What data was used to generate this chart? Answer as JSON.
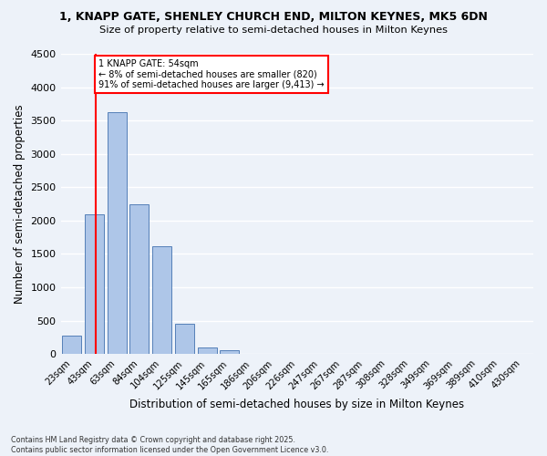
{
  "title_line1": "1, KNAPP GATE, SHENLEY CHURCH END, MILTON KEYNES, MK5 6DN",
  "title_line2": "Size of property relative to semi-detached houses in Milton Keynes",
  "xlabel": "Distribution of semi-detached houses by size in Milton Keynes",
  "ylabel": "Number of semi-detached properties",
  "categories": [
    "23sqm",
    "43sqm",
    "63sqm",
    "84sqm",
    "104sqm",
    "125sqm",
    "145sqm",
    "165sqm",
    "186sqm",
    "206sqm",
    "226sqm",
    "247sqm",
    "267sqm",
    "287sqm",
    "308sqm",
    "328sqm",
    "349sqm",
    "369sqm",
    "389sqm",
    "410sqm",
    "430sqm"
  ],
  "bar_values": [
    270,
    2100,
    3620,
    2240,
    1620,
    450,
    100,
    55,
    0,
    0,
    0,
    0,
    0,
    0,
    0,
    0,
    0,
    0,
    0,
    0,
    0
  ],
  "bar_color": "#aec6e8",
  "bar_edge_color": "#5580b8",
  "property_sqm": 54,
  "bin_edges": [
    23,
    43,
    63,
    84,
    104,
    125,
    145,
    165,
    186,
    206,
    226,
    247,
    267,
    287,
    308,
    328,
    349,
    369,
    389,
    410,
    430
  ],
  "property_label": "1 KNAPP GATE: 54sqm",
  "annotation_line1": "← 8% of semi-detached houses are smaller (820)",
  "annotation_line2": "91% of semi-detached houses are larger (9,413) →",
  "ylim": [
    0,
    4500
  ],
  "yticks": [
    0,
    500,
    1000,
    1500,
    2000,
    2500,
    3000,
    3500,
    4000,
    4500
  ],
  "background_color": "#edf2f9",
  "grid_color": "#ffffff",
  "footer_line1": "Contains HM Land Registry data © Crown copyright and database right 2025.",
  "footer_line2": "Contains public sector information licensed under the Open Government Licence v3.0."
}
